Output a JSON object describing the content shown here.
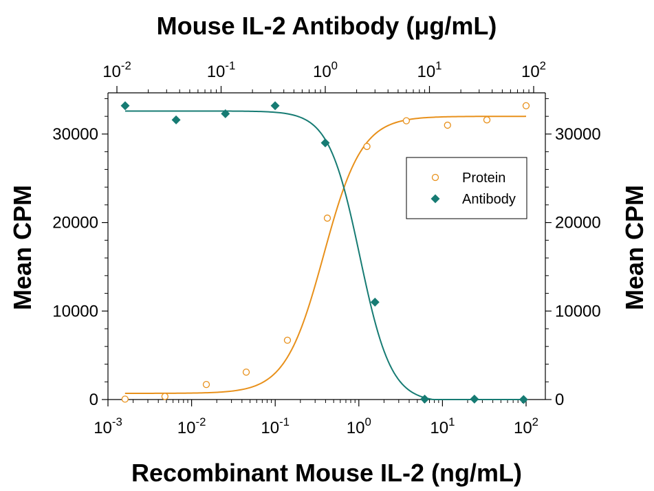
{
  "chart_data": {
    "type": "scatter",
    "top_title": "Mouse IL-2 Antibody (μg/mL)",
    "xlabel": "Recombinant Mouse IL-2 (ng/mL)",
    "ylabel_left": "Mean CPM",
    "ylabel_right": "Mean CPM",
    "x_scale": "log",
    "x_bottom_range": [
      0.001,
      100
    ],
    "x_bottom_ticks": [
      "10-3",
      "10-2",
      "10-1",
      "100",
      "101",
      "102"
    ],
    "x_top_range": [
      0.01,
      100
    ],
    "x_top_ticks": [
      "10-2",
      "10-1",
      "100",
      "101",
      "102"
    ],
    "ylim": [
      0,
      34500
    ],
    "y_ticks": [
      "0",
      "10000",
      "20000",
      "30000"
    ],
    "legend_position": "upper-right",
    "series": [
      {
        "name": "Protein",
        "color": "#e8901a",
        "marker": "open-circle",
        "axis": "bottom",
        "points": [
          [
            0.0016,
            50
          ],
          [
            0.0048,
            350
          ],
          [
            0.015,
            1700
          ],
          [
            0.045,
            3100
          ],
          [
            0.14,
            6700
          ],
          [
            0.42,
            20500
          ],
          [
            1.25,
            28600
          ],
          [
            3.7,
            31500
          ],
          [
            11.5,
            31000
          ],
          [
            34,
            31600
          ],
          [
            100,
            33200
          ]
        ],
        "curve": {
          "bottom": 700,
          "top": 32000,
          "ec50": 0.38,
          "hill": 1.9
        }
      },
      {
        "name": "Antibody",
        "color": "#167b73",
        "marker": "filled-diamond",
        "axis": "top",
        "points": [
          [
            0.012,
            33200
          ],
          [
            0.037,
            31600
          ],
          [
            0.11,
            32300
          ],
          [
            0.33,
            33200
          ],
          [
            1.0,
            29000
          ],
          [
            3.0,
            11000
          ],
          [
            9.0,
            50
          ],
          [
            27,
            50
          ],
          [
            80,
            0
          ]
        ],
        "curve": {
          "bottom": -300,
          "top": 32600,
          "ec50": 2.15,
          "hill": -2.9
        }
      }
    ]
  }
}
